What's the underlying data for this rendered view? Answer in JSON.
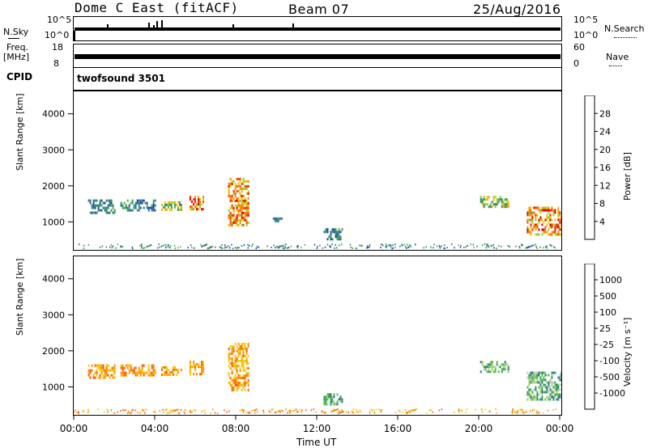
{
  "header": {
    "station": "Dome C East (fitACF)",
    "beam": "Beam 07",
    "date": "25/Aug/2016"
  },
  "strips": {
    "nsky": {
      "label": "N.Sky",
      "tick_top": "10^5",
      "tick_bottom": "10^0"
    },
    "nsearch": {
      "label": "N.Search",
      "tick_top": "10^5",
      "tick_bottom": "10^0"
    },
    "freq": {
      "label_line1": "Freq.",
      "label_line2": "[MHz]",
      "tick_top": "18",
      "tick_bottom": "8"
    },
    "nave": {
      "label": "Nave",
      "tick_top": "60",
      "tick_bottom": "0"
    },
    "cpid": {
      "label": "CPID",
      "value": "twofsound 3501"
    }
  },
  "chart_data": [
    {
      "type": "heatmap",
      "name": "power",
      "xlabel": "Time UT",
      "ylabel": "Slant Range [km]",
      "ylim": [
        200,
        4600
      ],
      "yticks": [
        "1000",
        "2000",
        "3000",
        "4000"
      ],
      "xlim": [
        0,
        24
      ],
      "colorbar": {
        "label": "Power [dB]",
        "ticks": [
          "4",
          "8",
          "12",
          "16",
          "20",
          "24",
          "28"
        ],
        "colors": [
          "#0000ff",
          "#1c4aa8",
          "#2f6fa0",
          "#3a8a78",
          "#2e8b57",
          "#55b045",
          "#8ccd2e",
          "#ddd000",
          "#ffa500",
          "#ff7f00",
          "#ff4500",
          "#ff1a00",
          "#e00000"
        ]
      },
      "patches": [
        {
          "t": [
            0.7,
            2.0
          ],
          "r": [
            1250,
            1600
          ],
          "level": "low"
        },
        {
          "t": [
            2.3,
            4.0
          ],
          "r": [
            1300,
            1600
          ],
          "level": "low"
        },
        {
          "t": [
            4.3,
            5.3
          ],
          "r": [
            1300,
            1550
          ],
          "level": "mid"
        },
        {
          "t": [
            5.7,
            6.4
          ],
          "r": [
            1300,
            1700
          ],
          "level": "high"
        },
        {
          "t": [
            7.6,
            8.6
          ],
          "r": [
            900,
            2200
          ],
          "level": "high"
        },
        {
          "t": [
            9.8,
            10.2
          ],
          "r": [
            1000,
            1100
          ],
          "level": "low"
        },
        {
          "t": [
            12.3,
            13.2
          ],
          "r": [
            500,
            800
          ],
          "level": "low"
        },
        {
          "t": [
            20.0,
            21.4
          ],
          "r": [
            1400,
            1700
          ],
          "level": "mid"
        },
        {
          "t": [
            22.3,
            24.0
          ],
          "r": [
            600,
            1400
          ],
          "level": "high"
        }
      ]
    },
    {
      "type": "heatmap",
      "name": "velocity",
      "xlabel": "Time UT",
      "ylabel": "Slant Range [km]",
      "ylim": [
        200,
        4600
      ],
      "yticks": [
        "1000",
        "2000",
        "3000",
        "4000"
      ],
      "xlim": [
        0,
        24
      ],
      "xticks": [
        "00:00",
        "04:00",
        "08:00",
        "12:00",
        "16:00",
        "20:00",
        "00:00"
      ],
      "colorbar": {
        "label": "Velocity [m s⁻¹]",
        "ticks": [
          "1000",
          "500",
          "100",
          "25",
          "-25",
          "-100",
          "-500",
          "-1000"
        ],
        "colors": [
          "#1010cc",
          "#2050a8",
          "#2f7a8a",
          "#3a9a60",
          "#52c040",
          "#a0d070",
          "#c8c8c8",
          "#f0d000",
          "#ffb000",
          "#ff8c00",
          "#ff5a00",
          "#ff2000",
          "#e00000"
        ]
      },
      "patches": [
        {
          "t": [
            0.7,
            2.0
          ],
          "r": [
            1250,
            1600
          ],
          "level": "neg"
        },
        {
          "t": [
            2.3,
            4.0
          ],
          "r": [
            1300,
            1600
          ],
          "level": "neg"
        },
        {
          "t": [
            4.3,
            5.3
          ],
          "r": [
            1300,
            1550
          ],
          "level": "neg"
        },
        {
          "t": [
            5.7,
            6.4
          ],
          "r": [
            1300,
            1700
          ],
          "level": "neg"
        },
        {
          "t": [
            7.6,
            8.6
          ],
          "r": [
            900,
            2200
          ],
          "level": "neg"
        },
        {
          "t": [
            12.3,
            13.2
          ],
          "r": [
            500,
            800
          ],
          "level": "pos"
        },
        {
          "t": [
            20.0,
            21.4
          ],
          "r": [
            1400,
            1700
          ],
          "level": "pos"
        },
        {
          "t": [
            22.3,
            24.0
          ],
          "r": [
            600,
            1400
          ],
          "level": "pos"
        }
      ]
    }
  ]
}
